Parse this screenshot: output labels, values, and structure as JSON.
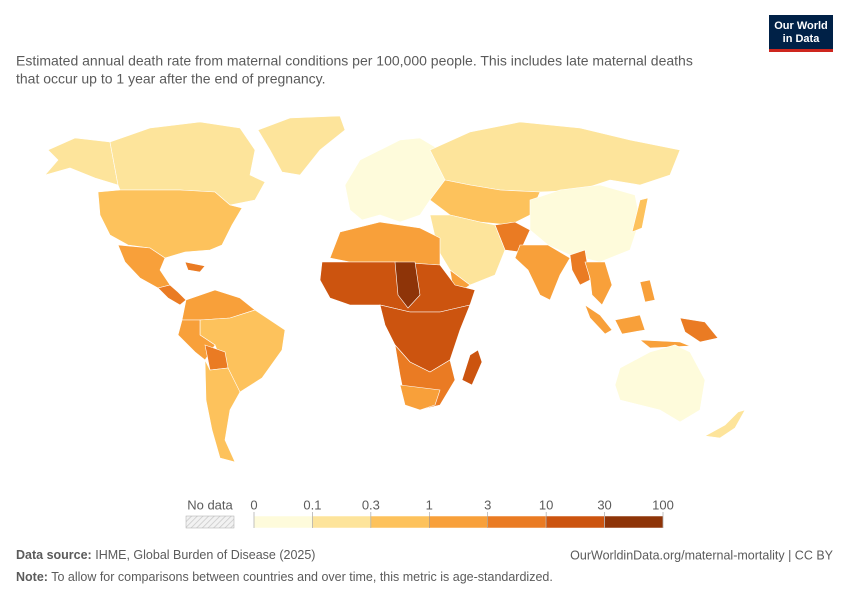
{
  "header": {
    "subtitle_line1": "Estimated annual death rate from maternal conditions per 100,000 people. This includes late maternal deaths",
    "subtitle_line2": "that occur up to 1 year after the end of pregnancy.",
    "logo_line1": "Our World",
    "logo_line2": "in Data"
  },
  "legend": {
    "no_data": "No data",
    "ticks": [
      0,
      0.1,
      0.3,
      1,
      3,
      10,
      30,
      100
    ],
    "colors": [
      "#fefbdb",
      "#fde49b",
      "#fdc25c",
      "#f8a03a",
      "#ea7b23",
      "#cc540f",
      "#8e3408"
    ]
  },
  "footer": {
    "source_label": "Data source:",
    "source": "IHME, Global Burden of Disease (2025)",
    "url": "OurWorldinData.org/maternal-mortality | CC BY",
    "note_label": "Note:",
    "note": "To allow for comparisons between countries and over time, this metric is age-standardized."
  }
}
